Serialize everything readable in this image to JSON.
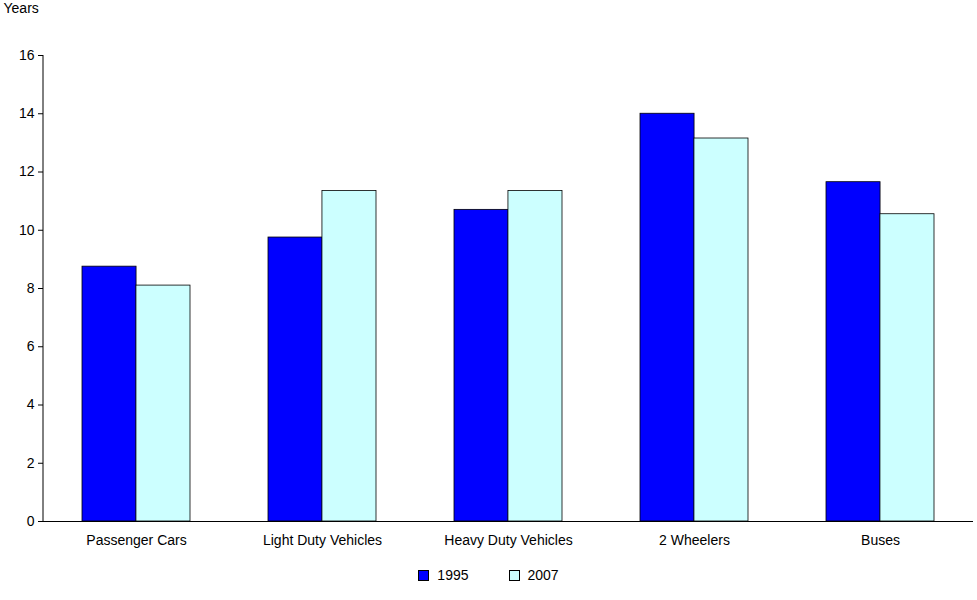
{
  "chart_data": {
    "type": "bar",
    "y_label": "Years",
    "categories": [
      "Passenger Cars",
      "Light Duty Vehicles",
      "Heavy Duty Vehicles",
      "2 Wheelers",
      "Buses"
    ],
    "series": [
      {
        "name": "1995",
        "color": "#0000ff",
        "values": [
          8.75,
          9.75,
          10.7,
          14.0,
          11.65
        ]
      },
      {
        "name": "2007",
        "color": "#ccffff",
        "values": [
          8.1,
          11.35,
          11.35,
          13.15,
          10.55
        ]
      }
    ],
    "ylim": [
      0,
      16
    ],
    "yticks": [
      0,
      2,
      4,
      6,
      8,
      10,
      12,
      14,
      16
    ],
    "grid": false,
    "legend": "bottom"
  }
}
